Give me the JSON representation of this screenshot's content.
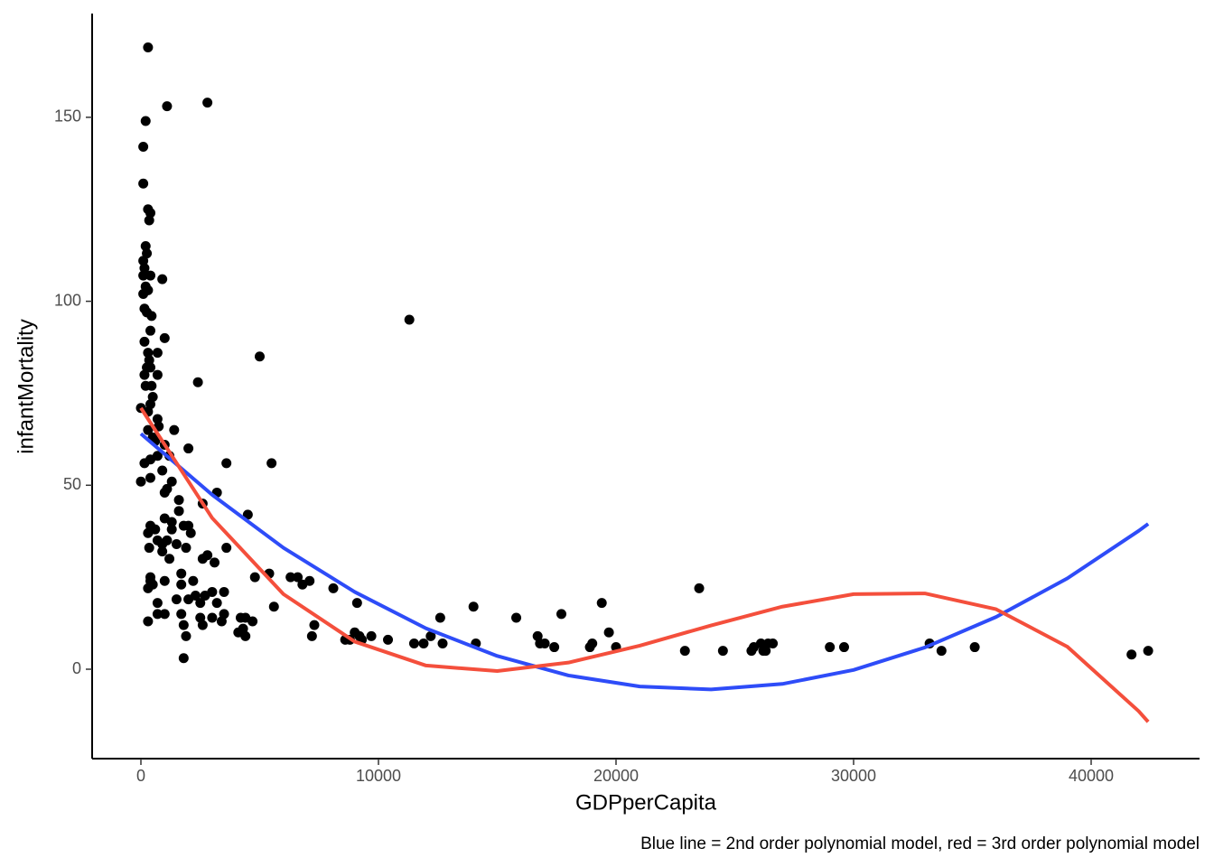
{
  "chart_data": {
    "type": "scatter",
    "x_label": "GDPperCapita",
    "y_label": "infantMortality",
    "caption": "Blue line = 2nd order polynomial model, red = 3rd order polynomial model",
    "xlim": [
      -2053,
      44563
    ],
    "ylim": [
      -24.3,
      178.2
    ],
    "xticks": [
      0,
      10000,
      20000,
      30000,
      40000
    ],
    "yticks": [
      0,
      50,
      100,
      150
    ],
    "grid": false,
    "series": [
      {
        "type": "points",
        "color": "#000000",
        "x": [
          300,
          1100,
          2800,
          200,
          100,
          100,
          300,
          400,
          350,
          200,
          250,
          100,
          150,
          100,
          400,
          900,
          200,
          300,
          100,
          150,
          250,
          450,
          400,
          1000,
          150,
          300,
          700,
          11300,
          5000,
          350,
          400,
          250,
          150,
          700,
          200,
          450,
          2400,
          500,
          400,
          0,
          300,
          700,
          750,
          1400,
          300,
          500,
          600,
          1000,
          1200,
          700,
          400,
          150,
          2000,
          3600,
          5500,
          900,
          1300,
          400,
          0,
          1100,
          1000,
          3200,
          1600,
          2600,
          4500,
          1600,
          1300,
          1000,
          1800,
          2000,
          400,
          600,
          1300,
          2100,
          300,
          700,
          1100,
          900,
          1500,
          350,
          1900,
          3600,
          900,
          1200,
          2600,
          2800,
          3100,
          1700,
          400,
          400,
          1000,
          2200,
          5400,
          4800,
          6300,
          6600,
          6800,
          7100,
          300,
          500,
          1700,
          3000,
          3500,
          2300,
          2700,
          8100,
          1500,
          2000,
          2500,
          3200,
          700,
          9100,
          1000,
          700,
          1700,
          2500,
          3000,
          3500,
          5600,
          4200,
          4400,
          4700,
          7300,
          300,
          2600,
          1800,
          3400,
          4300,
          4100,
          4400,
          1900,
          1800,
          7200,
          9000,
          8800,
          9700,
          9300,
          9200,
          8600,
          10400,
          11500,
          11900,
          12200,
          12600,
          12700,
          14000,
          14100,
          15800,
          16700,
          16800,
          17000,
          17400,
          17700,
          18900,
          19000,
          19400,
          19700,
          20000,
          22900,
          23500,
          24500,
          25700,
          25800,
          26100,
          26200,
          26400,
          26600,
          26300,
          29000,
          29600,
          33200,
          33700,
          35100,
          41700,
          42400
        ],
        "values": [
          169,
          153,
          154,
          149,
          142,
          132,
          125,
          124,
          122,
          115,
          113,
          111,
          109,
          107,
          107,
          106,
          104,
          103,
          102,
          98,
          97,
          96,
          92,
          90,
          89,
          86,
          86,
          95,
          85,
          84,
          82,
          82,
          80,
          80,
          77,
          77,
          78,
          74,
          72,
          71,
          70,
          68,
          66,
          65,
          65,
          63,
          62,
          61,
          58,
          58,
          57,
          56,
          60,
          56,
          56,
          54,
          51,
          52,
          51,
          49,
          48,
          48,
          46,
          45,
          42,
          43,
          40,
          41,
          39,
          39,
          39,
          38,
          38,
          37,
          37,
          35,
          35,
          34,
          34,
          33,
          33,
          33,
          32,
          30,
          30,
          31,
          29,
          26,
          25,
          24,
          24,
          24,
          26,
          25,
          25,
          25,
          23,
          24,
          22,
          23,
          23,
          21,
          21,
          20,
          20,
          22,
          19,
          19,
          18,
          18,
          18,
          18,
          15,
          15,
          15,
          14,
          14,
          15,
          17,
          14,
          14,
          13,
          12,
          13,
          12,
          12,
          13,
          11,
          10,
          9,
          9,
          3,
          9,
          10,
          8,
          9,
          8,
          9,
          8,
          8,
          7,
          7,
          9,
          14,
          7,
          17,
          7,
          14,
          9,
          7,
          7,
          6,
          15,
          6,
          7,
          18,
          10,
          6,
          5,
          22,
          5,
          5,
          6,
          7,
          5,
          7,
          7,
          5,
          6,
          6,
          7,
          5,
          6,
          4,
          5
        ]
      },
      {
        "type": "line",
        "color": "#2e4cf8",
        "x": [
          0,
          3000,
          6000,
          9000,
          12000,
          15000,
          18000,
          21000,
          24000,
          27000,
          30000,
          33000,
          36000,
          39000,
          42000,
          42400
        ],
        "values": [
          64.0,
          47.4,
          33.0,
          21.0,
          11.1,
          3.6,
          -1.7,
          -4.7,
          -5.5,
          -4.0,
          -0.2,
          5.9,
          14.2,
          24.7,
          37.6,
          39.5
        ]
      },
      {
        "type": "line",
        "color": "#f44f3c",
        "x": [
          0,
          3000,
          6000,
          9000,
          12000,
          15000,
          18000,
          21000,
          24000,
          27000,
          30000,
          33000,
          36000,
          39000,
          42000,
          42400
        ],
        "values": [
          71,
          41.1,
          20.4,
          7.5,
          1.0,
          -0.5,
          1.8,
          6.4,
          11.9,
          17.0,
          20.4,
          20.6,
          16.3,
          6.1,
          -11.4,
          -14.3
        ]
      }
    ]
  }
}
